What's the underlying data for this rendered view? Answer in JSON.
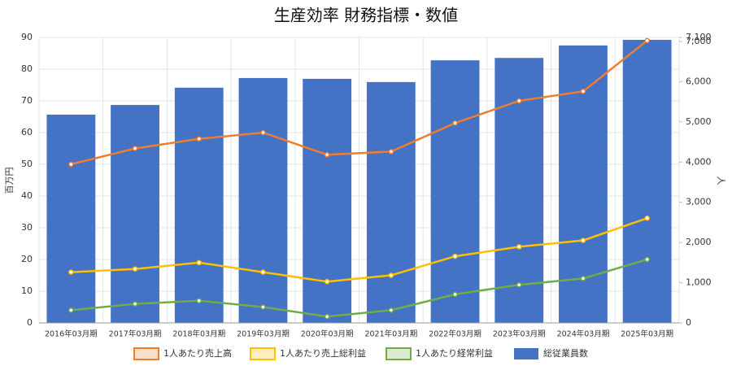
{
  "chart_data": {
    "type": "combo",
    "title": "生産効率 財務指標・数値",
    "y_label": "百万円",
    "y2_label": "人",
    "categories": [
      "2016年03月期",
      "2017年03月期",
      "2018年03月期",
      "2019年03月期",
      "2020年03月期",
      "2021年03月期",
      "2022年03月期",
      "2023年03月期",
      "2024年03月期",
      "2025年03月期"
    ],
    "series": [
      {
        "name": "1人あたり売上高",
        "type": "line",
        "color": "#ED7D31",
        "values": [
          50,
          55,
          58,
          60,
          53,
          54,
          63,
          70,
          73,
          89
        ]
      },
      {
        "name": "1人あたり売上総利益",
        "type": "line",
        "color": "#FFC000",
        "values": [
          16,
          17,
          19,
          16,
          13,
          15,
          21,
          24,
          26,
          33
        ]
      },
      {
        "name": "1人あたり経常利益",
        "type": "line",
        "color": "#70AD47",
        "values": [
          4,
          6,
          7,
          5,
          2,
          4,
          9,
          12,
          14,
          20
        ]
      },
      {
        "name": "総従業員数",
        "type": "bar",
        "axis": "y2",
        "color": "#4472C4",
        "values": [
          5180,
          5420,
          5850,
          6090,
          6070,
          5990,
          6530,
          6590,
          6900,
          7040
        ]
      }
    ],
    "ylim": [
      0,
      90
    ],
    "yticks": [
      0,
      10,
      20,
      30,
      40,
      50,
      60,
      70,
      80,
      90
    ],
    "y2lim": [
      0,
      7100
    ],
    "y2ticks": [
      0,
      {
        "value": 1000,
        "label": "1,000"
      },
      {
        "value": 2000,
        "label": "2,000"
      },
      {
        "value": 3000,
        "label": "3,000"
      },
      {
        "value": 4000,
        "label": "4,000"
      },
      {
        "value": 5000,
        "label": "5,000"
      },
      {
        "value": 6000,
        "label": "6,000"
      },
      {
        "value": 7000,
        "label": "7,000"
      },
      {
        "value": 7100,
        "label": "7,100"
      }
    ],
    "grid": true,
    "legend": "bottom"
  }
}
